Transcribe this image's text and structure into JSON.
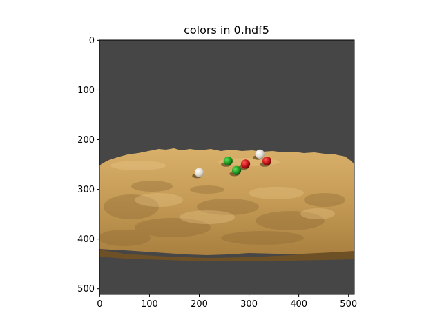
{
  "title": "colors in 0.hdf5",
  "image": {
    "background_color": "#464646",
    "terrain_color": "#c49a55",
    "terrain_shadow_color": "#7a5a2a",
    "spheres": [
      {
        "color": "green",
        "hex": "#1f9a1f",
        "x": 258,
        "y": 243
      },
      {
        "color": "red",
        "hex": "#c41414",
        "x": 293,
        "y": 249
      },
      {
        "color": "white",
        "hex": "#e6e2da",
        "x": 322,
        "y": 229
      },
      {
        "color": "red",
        "hex": "#c41414",
        "x": 336,
        "y": 243
      },
      {
        "color": "white",
        "hex": "#e6e2da",
        "x": 200,
        "y": 266
      },
      {
        "color": "green",
        "hex": "#1f9a1f",
        "x": 275,
        "y": 262
      }
    ]
  },
  "axes": {
    "xlim": [
      0,
      511
    ],
    "ylim": [
      511,
      0
    ],
    "x_ticks": [
      0,
      100,
      200,
      300,
      400,
      500
    ],
    "y_ticks": [
      0,
      100,
      200,
      300,
      400,
      500
    ]
  }
}
